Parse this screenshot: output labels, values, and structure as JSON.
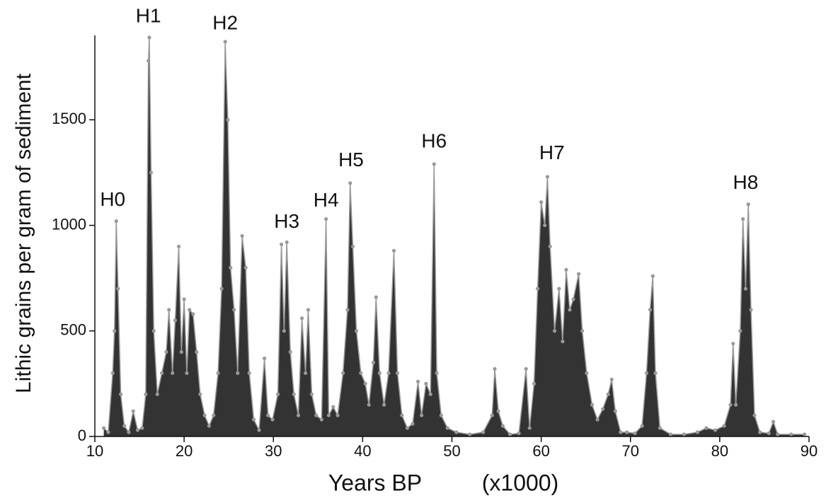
{
  "chart_data": {
    "type": "area",
    "y_label": "Lithic grains per gram of sediment",
    "x_label": "Years BP",
    "x_unit": "(x1000)",
    "xlim": [
      10,
      90
    ],
    "xticks": [
      10,
      20,
      30,
      40,
      50,
      60,
      70,
      80,
      90
    ],
    "ylim": [
      0,
      1900
    ],
    "yticks": [
      0,
      500,
      1000,
      1500
    ],
    "x": [
      11.0,
      11.5,
      12.0,
      12.2,
      12.4,
      12.6,
      12.9,
      13.3,
      13.8,
      14.3,
      14.8,
      15.3,
      15.7,
      16.0,
      16.1,
      16.3,
      16.6,
      17.0,
      17.5,
      18.0,
      18.3,
      18.7,
      19.0,
      19.4,
      19.7,
      20.0,
      20.3,
      20.6,
      21.0,
      21.4,
      21.8,
      22.3,
      22.8,
      23.3,
      23.8,
      24.2,
      24.6,
      24.9,
      25.2,
      25.6,
      26.0,
      26.5,
      26.9,
      27.3,
      27.8,
      28.4,
      29.0,
      29.4,
      29.9,
      30.5,
      30.9,
      31.2,
      31.5,
      31.9,
      32.3,
      32.8,
      33.2,
      33.6,
      33.9,
      34.3,
      34.8,
      35.4,
      35.9,
      36.2,
      36.7,
      37.2,
      37.8,
      38.3,
      38.6,
      38.9,
      39.3,
      39.8,
      40.3,
      40.7,
      41.2,
      41.5,
      41.9,
      42.4,
      42.9,
      43.5,
      43.9,
      44.4,
      45.0,
      45.6,
      46.2,
      46.6,
      47.1,
      47.6,
      48.0,
      48.3,
      48.8,
      49.5,
      50.5,
      52.0,
      53.5,
      54.5,
      54.8,
      55.2,
      55.7,
      56.5,
      57.5,
      58.3,
      58.7,
      59.2,
      59.6,
      60.0,
      60.4,
      60.7,
      61.0,
      61.5,
      62.0,
      62.4,
      62.8,
      63.2,
      63.6,
      64.2,
      64.6,
      65.1,
      65.7,
      66.3,
      66.9,
      67.5,
      67.9,
      68.3,
      68.9,
      69.6,
      70.5,
      71.3,
      71.8,
      72.2,
      72.5,
      72.8,
      73.3,
      74.5,
      76.0,
      77.5,
      78.5,
      79.5,
      80.5,
      81.2,
      81.5,
      81.8,
      82.3,
      82.6,
      82.9,
      83.2,
      83.5,
      83.9,
      84.5,
      85.5,
      86.0,
      86.5,
      88.0,
      89.5
    ],
    "series": [
      {
        "color": "#333333",
        "line_color": "#999999",
        "values": [
          40,
          20,
          300,
          500,
          1020,
          700,
          200,
          50,
          20,
          120,
          30,
          40,
          200,
          1780,
          1890,
          1250,
          500,
          200,
          300,
          400,
          600,
          300,
          550,
          900,
          400,
          650,
          300,
          600,
          580,
          400,
          200,
          100,
          50,
          100,
          300,
          700,
          1870,
          1500,
          800,
          600,
          300,
          950,
          800,
          300,
          80,
          30,
          370,
          100,
          80,
          200,
          910,
          500,
          920,
          400,
          200,
          100,
          560,
          300,
          600,
          200,
          100,
          80,
          1030,
          100,
          140,
          100,
          300,
          600,
          1200,
          900,
          500,
          300,
          250,
          150,
          350,
          660,
          300,
          150,
          300,
          880,
          300,
          100,
          40,
          60,
          260,
          100,
          250,
          200,
          1290,
          300,
          100,
          40,
          20,
          10,
          20,
          100,
          320,
          120,
          50,
          10,
          15,
          320,
          40,
          250,
          700,
          1110,
          1000,
          1230,
          900,
          500,
          700,
          450,
          790,
          600,
          650,
          770,
          500,
          300,
          150,
          80,
          130,
          200,
          270,
          120,
          20,
          20,
          15,
          50,
          300,
          600,
          760,
          300,
          40,
          10,
          10,
          20,
          40,
          30,
          50,
          150,
          440,
          150,
          500,
          1030,
          700,
          1100,
          600,
          100,
          20,
          15,
          70,
          10,
          10,
          10
        ]
      }
    ],
    "annotations": [
      {
        "text": "H0",
        "x": 12.0,
        "y": 1117
      },
      {
        "text": "H1",
        "x": 16.0,
        "y": 1987
      },
      {
        "text": "H2",
        "x": 24.6,
        "y": 1953
      },
      {
        "text": "H3",
        "x": 31.5,
        "y": 1013
      },
      {
        "text": "H4",
        "x": 35.9,
        "y": 1114
      },
      {
        "text": "H5",
        "x": 38.7,
        "y": 1305
      },
      {
        "text": "H6",
        "x": 48.0,
        "y": 1393
      },
      {
        "text": "H7",
        "x": 61.2,
        "y": 1339
      },
      {
        "text": "H8",
        "x": 82.9,
        "y": 1198
      }
    ]
  }
}
